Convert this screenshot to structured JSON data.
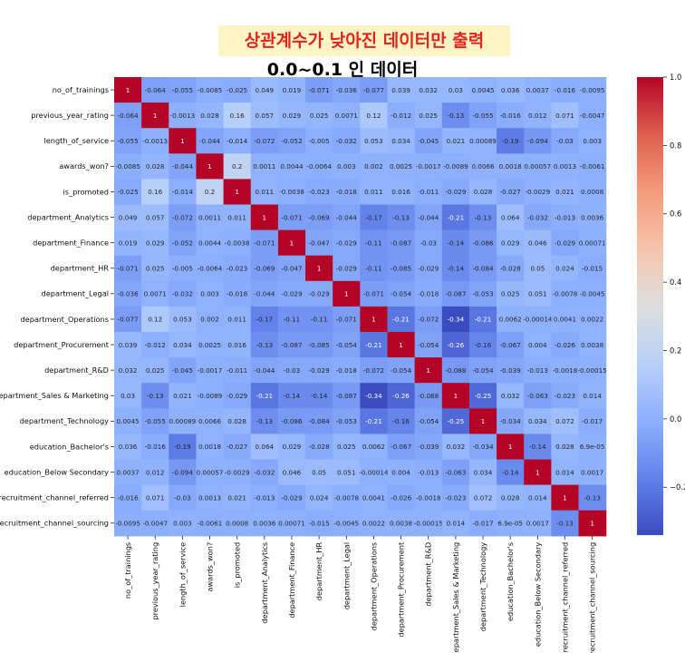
{
  "header": {
    "banner": "상관계수가 낮아진 데이터만 출력",
    "subtitle": "0.0~0.1 인 데이터"
  },
  "colors": {
    "banner_bg": "#fdf6c4",
    "banner_text": "#e0241f",
    "cmap": "coolwarm"
  },
  "chart_data": {
    "type": "heatmap",
    "title": "",
    "labels": [
      "no_of_trainings",
      "previous_year_rating",
      "length_of_service",
      "awards_won?",
      "is_promoted",
      "department_Analytics",
      "department_Finance",
      "department_HR",
      "department_Legal",
      "department_Operations",
      "department_Procurement",
      "department_R&D",
      "department_Sales & Marketing",
      "department_Technology",
      "education_Bachelor's",
      "education_Below Secondary",
      "recruitment_channel_referred",
      "recruitment_channel_sourcing"
    ],
    "matrix": [
      [
        1,
        -0.064,
        -0.055,
        -0.0085,
        -0.025,
        0.049,
        0.019,
        -0.071,
        -0.036,
        -0.077,
        0.039,
        0.032,
        0.03,
        0.0045,
        0.036,
        0.0037,
        -0.016,
        -0.0095
      ],
      [
        -0.064,
        1,
        -0.0013,
        0.028,
        0.16,
        0.057,
        0.029,
        0.025,
        0.0071,
        0.12,
        -0.012,
        0.025,
        -0.13,
        -0.055,
        -0.016,
        0.012,
        0.071,
        -0.0047
      ],
      [
        -0.055,
        -0.0013,
        1,
        -0.044,
        -0.014,
        -0.072,
        -0.052,
        -0.005,
        -0.032,
        0.053,
        0.034,
        -0.045,
        0.021,
        0.00089,
        -0.19,
        -0.094,
        -0.03,
        0.003
      ],
      [
        -0.0085,
        0.028,
        -0.044,
        1,
        0.2,
        0.0011,
        0.0044,
        -0.0064,
        0.003,
        0.002,
        0.0025,
        -0.0017,
        -0.0089,
        0.0066,
        0.0018,
        0.00057,
        0.0013,
        -0.0061
      ],
      [
        -0.025,
        0.16,
        -0.014,
        0.2,
        1,
        0.011,
        -0.0038,
        -0.023,
        -0.018,
        0.011,
        0.016,
        -0.011,
        -0.029,
        0.028,
        -0.027,
        -0.0029,
        0.021,
        0.0008
      ],
      [
        0.049,
        0.057,
        -0.072,
        0.0011,
        0.011,
        1,
        -0.071,
        -0.069,
        -0.044,
        -0.17,
        -0.13,
        -0.044,
        -0.21,
        -0.13,
        0.064,
        -0.032,
        -0.013,
        0.0036
      ],
      [
        0.019,
        0.029,
        -0.052,
        0.0044,
        -0.0038,
        -0.071,
        1,
        -0.047,
        -0.029,
        -0.11,
        -0.087,
        -0.03,
        -0.14,
        -0.086,
        0.029,
        0.046,
        -0.029,
        0.00071
      ],
      [
        -0.071,
        0.025,
        -0.005,
        -0.0064,
        -0.023,
        -0.069,
        -0.047,
        1,
        -0.029,
        -0.11,
        -0.085,
        -0.029,
        -0.14,
        -0.084,
        -0.028,
        0.05,
        0.024,
        -0.015
      ],
      [
        -0.036,
        0.0071,
        -0.032,
        0.003,
        -0.018,
        -0.044,
        -0.029,
        -0.029,
        1,
        -0.071,
        -0.054,
        -0.018,
        -0.087,
        -0.053,
        0.025,
        0.051,
        -0.0078,
        -0.0045
      ],
      [
        -0.077,
        0.12,
        0.053,
        0.002,
        0.011,
        -0.17,
        -0.11,
        -0.11,
        -0.071,
        1,
        -0.21,
        -0.072,
        -0.34,
        -0.21,
        0.0062,
        -0.00014,
        0.0041,
        0.0022
      ],
      [
        0.039,
        -0.012,
        0.034,
        0.0025,
        0.016,
        -0.13,
        -0.087,
        -0.085,
        -0.054,
        -0.21,
        1,
        -0.054,
        -0.26,
        -0.16,
        -0.067,
        0.004,
        -0.026,
        0.0038
      ],
      [
        0.032,
        0.025,
        -0.045,
        -0.0017,
        -0.011,
        -0.044,
        -0.03,
        -0.029,
        -0.018,
        -0.072,
        -0.054,
        1,
        -0.088,
        -0.054,
        -0.039,
        -0.013,
        -0.0018,
        -0.00015
      ],
      [
        0.03,
        -0.13,
        0.021,
        -0.0089,
        -0.029,
        -0.21,
        -0.14,
        -0.14,
        -0.087,
        -0.34,
        -0.26,
        -0.088,
        1,
        -0.25,
        0.032,
        -0.063,
        -0.023,
        0.014
      ],
      [
        0.0045,
        -0.055,
        0.00089,
        0.0066,
        0.028,
        -0.13,
        -0.086,
        -0.084,
        -0.053,
        -0.21,
        -0.16,
        -0.054,
        -0.25,
        1,
        -0.034,
        0.034,
        0.072,
        -0.017
      ],
      [
        0.036,
        -0.016,
        -0.19,
        0.0018,
        -0.027,
        0.064,
        0.029,
        -0.028,
        0.025,
        0.0062,
        -0.067,
        -0.039,
        0.032,
        -0.034,
        1,
        -0.14,
        0.028,
        6.9e-05
      ],
      [
        0.0037,
        0.012,
        -0.094,
        0.00057,
        -0.0029,
        -0.032,
        0.046,
        0.05,
        0.051,
        -0.00014,
        0.004,
        -0.013,
        -0.063,
        0.034,
        -0.14,
        1,
        0.014,
        0.0017
      ],
      [
        -0.016,
        0.071,
        -0.03,
        0.0013,
        0.021,
        -0.013,
        -0.029,
        0.024,
        -0.0078,
        0.0041,
        -0.026,
        -0.0018,
        -0.023,
        0.072,
        0.028,
        0.014,
        1,
        -0.13
      ],
      [
        -0.0095,
        -0.0047,
        0.003,
        -0.0061,
        0.0008,
        0.0036,
        0.00071,
        -0.015,
        -0.0045,
        0.0022,
        0.0038,
        -0.00015,
        0.014,
        -0.017,
        6.9e-05,
        0.0017,
        -0.13,
        1
      ]
    ],
    "annotations": [
      [
        "1",
        "-0.064",
        "-0.055",
        "-0.0085",
        "-0.025",
        "0.049",
        "0.019",
        "-0.071",
        "-0.036",
        "-0.077",
        "0.039",
        "0.032",
        "0.03",
        "0.0045",
        "0.036",
        "0.0037",
        "-0.016",
        "-0.0095"
      ],
      [
        "-0.064",
        "1",
        "-0.0013",
        "0.028",
        "0.16",
        "0.057",
        "0.029",
        "0.025",
        "0.0071",
        "0.12",
        "-0.012",
        "0.025",
        "-0.13",
        "-0.055",
        "-0.016",
        "0.012",
        "0.071",
        "-0.0047"
      ],
      [
        "-0.055",
        "-0.0013",
        "1",
        "-0.044",
        "-0.014",
        "-0.072",
        "-0.052",
        "-0.005",
        "-0.032",
        "0.053",
        "0.034",
        "-0.045",
        "0.021",
        "0.00089",
        "-0.19",
        "-0.094",
        "-0.03",
        "0.003"
      ],
      [
        "-0.0085",
        "0.028",
        "-0.044",
        "1",
        "0.2",
        "0.0011",
        "0.0044",
        "-0.0064",
        "0.003",
        "0.002",
        "0.0025",
        "-0.0017",
        "-0.0089",
        "0.0066",
        "0.0018",
        "0.00057",
        "0.0013",
        "-0.0061"
      ],
      [
        "-0.025",
        "0.16",
        "-0.014",
        "0.2",
        "1",
        "0.011",
        "-0.0038",
        "-0.023",
        "-0.018",
        "0.011",
        "0.016",
        "-0.011",
        "-0.029",
        "0.028",
        "-0.027",
        "-0.0029",
        "0.021",
        "0.0008"
      ],
      [
        "0.049",
        "0.057",
        "-0.072",
        "0.0011",
        "0.011",
        "1",
        "-0.071",
        "-0.069",
        "-0.044",
        "-0.17",
        "-0.13",
        "-0.044",
        "-0.21",
        "-0.13",
        "0.064",
        "-0.032",
        "-0.013",
        "0.0036"
      ],
      [
        "0.019",
        "0.029",
        "-0.052",
        "0.0044",
        "-0.0038",
        "-0.071",
        "1",
        "-0.047",
        "-0.029",
        "-0.11",
        "-0.087",
        "-0.03",
        "-0.14",
        "-0.086",
        "0.029",
        "0.046",
        "-0.029",
        "0.00071"
      ],
      [
        "-0.071",
        "0.025",
        "-0.005",
        "-0.0064",
        "-0.023",
        "-0.069",
        "-0.047",
        "1",
        "-0.029",
        "-0.11",
        "-0.085",
        "-0.029",
        "-0.14",
        "-0.084",
        "-0.028",
        "0.05",
        "0.024",
        "-0.015"
      ],
      [
        "-0.036",
        "0.0071",
        "-0.032",
        "0.003",
        "-0.018",
        "-0.044",
        "-0.029",
        "-0.029",
        "1",
        "-0.071",
        "-0.054",
        "-0.018",
        "-0.087",
        "-0.053",
        "0.025",
        "0.051",
        "-0.0078",
        "-0.0045"
      ],
      [
        "-0.077",
        "0.12",
        "0.053",
        "0.002",
        "0.011",
        "-0.17",
        "-0.11",
        "-0.11",
        "-0.071",
        "1",
        "-0.21",
        "-0.072",
        "-0.34",
        "-0.21",
        "0.0062",
        "-0.00014",
        "0.0041",
        "0.0022"
      ],
      [
        "0.039",
        "-0.012",
        "0.034",
        "0.0025",
        "0.016",
        "-0.13",
        "-0.087",
        "-0.085",
        "-0.054",
        "-0.21",
        "1",
        "-0.054",
        "-0.26",
        "-0.16",
        "-0.067",
        "0.004",
        "-0.026",
        "0.0038"
      ],
      [
        "0.032",
        "0.025",
        "-0.045",
        "-0.0017",
        "-0.011",
        "-0.044",
        "-0.03",
        "-0.029",
        "-0.018",
        "-0.072",
        "-0.054",
        "1",
        "-0.088",
        "-0.054",
        "-0.039",
        "-0.013",
        "-0.0018",
        "-0.00015"
      ],
      [
        "0.03",
        "-0.13",
        "0.021",
        "-0.0089",
        "-0.029",
        "-0.21",
        "-0.14",
        "-0.14",
        "-0.087",
        "-0.34",
        "-0.26",
        "-0.088",
        "1",
        "-0.25",
        "0.032",
        "-0.063",
        "-0.023",
        "0.014"
      ],
      [
        "0.0045",
        "-0.055",
        "0.00089",
        "0.0066",
        "0.028",
        "-0.13",
        "-0.086",
        "-0.084",
        "-0.053",
        "-0.21",
        "-0.16",
        "-0.054",
        "-0.25",
        "1",
        "-0.034",
        "0.034",
        "0.072",
        "-0.017"
      ],
      [
        "0.036",
        "-0.016",
        "-0.19",
        "0.0018",
        "-0.027",
        "0.064",
        "0.029",
        "-0.028",
        "0.025",
        "0.0062",
        "-0.067",
        "-0.039",
        "0.032",
        "-0.034",
        "1",
        "-0.14",
        "0.028",
        "6.9e-05"
      ],
      [
        "0.0037",
        "0.012",
        "-0.094",
        "0.00057",
        "-0.0029",
        "-0.032",
        "0.046",
        "0.05",
        "0.051",
        "-0.00014",
        "0.004",
        "-0.013",
        "-0.063",
        "0.034",
        "-0.14",
        "1",
        "0.014",
        "0.0017"
      ],
      [
        "-0.016",
        "0.071",
        "-0.03",
        "0.0013",
        "0.021",
        "-0.013",
        "-0.029",
        "0.024",
        "-0.0078",
        "0.0041",
        "-0.026",
        "-0.0018",
        "-0.023",
        "0.072",
        "0.028",
        "0.014",
        "1",
        "-0.13"
      ],
      [
        "-0.0095",
        "-0.0047",
        "0.003",
        "-0.0061",
        "0.0008",
        "0.0036",
        "0.00071",
        "-0.015",
        "-0.0045",
        "0.0022",
        "0.0038",
        "-0.00015",
        "0.014",
        "-0.017",
        "6.9e-05",
        "0.0017",
        "-0.13",
        "1"
      ]
    ],
    "colorbar": {
      "vmin": -0.34,
      "vmax": 1,
      "ticks": [
        -0.2,
        0.0,
        0.2,
        0.4,
        0.6,
        0.8,
        1.0
      ],
      "tick_labels": [
        "−0.2",
        "0.0",
        "0.2",
        "0.4",
        "0.6",
        "0.8",
        "1.0"
      ]
    },
    "grid": false,
    "legend": "colorbar-right"
  }
}
